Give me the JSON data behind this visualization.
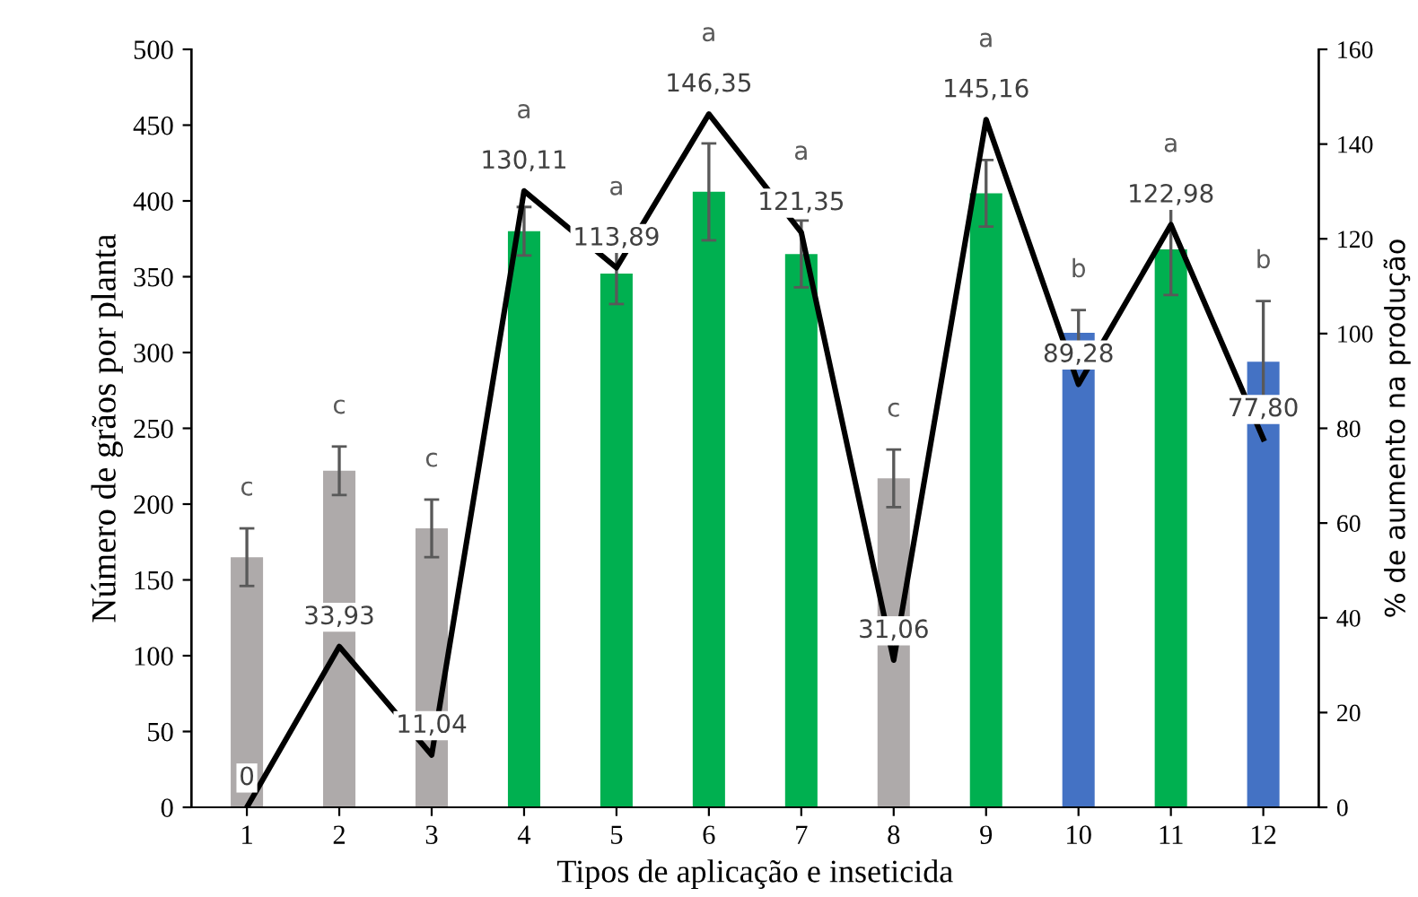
{
  "chart_data": {
    "type": "bar",
    "xlabel": "Tipos de aplicação e inseticida",
    "ylabel": "Número de grãos por planta",
    "y2label": "% de aumento na produção",
    "categories": [
      "1",
      "2",
      "3",
      "4",
      "5",
      "6",
      "7",
      "8",
      "9",
      "10",
      "11",
      "12"
    ],
    "series": [
      {
        "colors": [
          "#aeaaaa",
          "#aeaaaa",
          "#aeaaaa",
          "#00b050",
          "#00b050",
          "#00b050",
          "#00b050",
          "#aeaaaa",
          "#00b050",
          "#4472c4",
          "#00b050",
          "#4472c4"
        ],
        "values": [
          165,
          222,
          184,
          380,
          352,
          406,
          365,
          217,
          405,
          313,
          368,
          294
        ],
        "errors": [
          19,
          16,
          19,
          16,
          20,
          32,
          22,
          19,
          22,
          15,
          30,
          40
        ]
      },
      {
        "type": "line",
        "axis": "y2",
        "color": "#000000",
        "values": [
          0,
          33.93,
          11.04,
          130.11,
          113.89,
          146.35,
          121.35,
          31.06,
          145.16,
          89.28,
          122.98,
          77.8
        ],
        "value_labels": [
          "0",
          "33,93",
          "11,04",
          "130,11",
          "113,89",
          "146,35",
          "121,35",
          "31,06",
          "145,16",
          "89,28",
          "122,98",
          "77,80"
        ]
      }
    ],
    "annotations": [
      "c",
      "c",
      "c",
      "a",
      "a",
      "a",
      "a",
      "c",
      "a",
      "b",
      "a",
      "b"
    ],
    "ylim": [
      0,
      500
    ],
    "yticks": [
      0,
      50,
      100,
      150,
      200,
      250,
      300,
      350,
      400,
      450,
      500
    ],
    "y2lim": [
      0,
      160
    ],
    "y2ticks": [
      0,
      20,
      40,
      60,
      80,
      100,
      120,
      140,
      160
    ],
    "grid": false,
    "marker": "none",
    "line_style": "solid"
  }
}
